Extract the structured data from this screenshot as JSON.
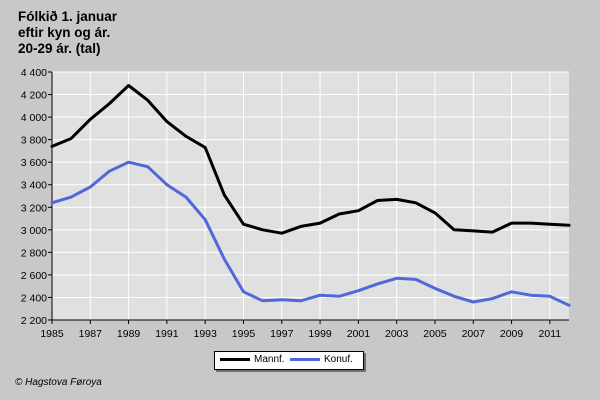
{
  "title_lines": [
    "Fólkið 1. januar",
    "eftir kyn og ár.",
    "20-29 ár. (tal)"
  ],
  "credit": "© Hagstova Føroya",
  "colors": {
    "background": "#c8c8c8",
    "plot": "#e0e0e0",
    "grid": "#ffffff",
    "mannf": "#000000",
    "konuf": "#5068d8"
  },
  "chart_data": {
    "type": "line",
    "title": "Fólkið 1. januar eftir kyn og ár. 20-29 ár. (tal)",
    "x": [
      1985,
      1986,
      1987,
      1988,
      1989,
      1990,
      1991,
      1992,
      1993,
      1994,
      1995,
      1996,
      1997,
      1998,
      1999,
      2000,
      2001,
      2002,
      2003,
      2004,
      2005,
      2006,
      2007,
      2008,
      2009,
      2010,
      2011,
      2012
    ],
    "xticks": [
      "1985",
      "1987",
      "1989",
      "1991",
      "1993",
      "1995",
      "1997",
      "1999",
      "2001",
      "2003",
      "2005",
      "2007",
      "2009",
      "2011"
    ],
    "yticks": [
      "2 200",
      "2 400",
      "2 600",
      "2 800",
      "3 000",
      "3 200",
      "3 400",
      "3 600",
      "3 800",
      "4 000",
      "4 200",
      "4 400"
    ],
    "ylim": [
      2200,
      4400
    ],
    "xlim": [
      1985,
      2012
    ],
    "grid": true,
    "legend_position": "bottom",
    "series": [
      {
        "name": "Mannf.",
        "color": "#000000",
        "values": [
          3740,
          3810,
          3980,
          4120,
          4280,
          4150,
          3960,
          3830,
          3730,
          3310,
          3050,
          3000,
          2970,
          3030,
          3060,
          3140,
          3170,
          3260,
          3270,
          3240,
          3150,
          3000,
          2990,
          2980,
          3060,
          3060,
          3050,
          3040
        ]
      },
      {
        "name": "Konuf.",
        "color": "#5068d8",
        "values": [
          3240,
          3290,
          3380,
          3520,
          3600,
          3560,
          3400,
          3290,
          3090,
          2740,
          2450,
          2370,
          2380,
          2370,
          2420,
          2410,
          2460,
          2520,
          2570,
          2560,
          2480,
          2410,
          2360,
          2390,
          2450,
          2420,
          2410,
          2330
        ]
      }
    ]
  }
}
